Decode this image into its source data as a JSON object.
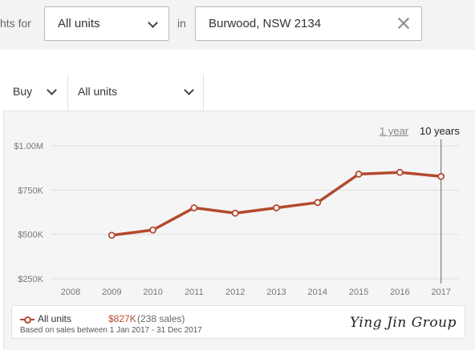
{
  "search": {
    "prefix_label": "hts for",
    "type_value": "All units",
    "in_label": "in",
    "location_value": "Burwood, NSW 2134"
  },
  "filters": {
    "mode_value": "Buy",
    "unit_value": "All units"
  },
  "range": {
    "one_year": "1 year",
    "ten_years": "10 years",
    "selected": "10 years"
  },
  "chart_data": {
    "type": "line",
    "x": [
      "2008",
      "2009",
      "2010",
      "2011",
      "2012",
      "2013",
      "2014",
      "2015",
      "2016",
      "2017"
    ],
    "y_tick_labels": [
      "$1.00M",
      "$750K",
      "$500K",
      "$250K"
    ],
    "y_ticks": [
      1000000,
      750000,
      500000,
      250000
    ],
    "ylim": [
      250000,
      1000000
    ],
    "series": [
      {
        "name": "All units",
        "values": [
          null,
          495000,
          525000,
          650000,
          620000,
          650000,
          680000,
          840000,
          850000,
          827000
        ]
      }
    ],
    "grid": true,
    "highlight_x": "2017",
    "color": "#b24a2e"
  },
  "legend": {
    "series_name": "All units",
    "value": "$827K",
    "count": "(238 sales)",
    "note": "Based on sales between 1 Jan 2017 - 31 Dec 2017"
  },
  "watermark": "Ying Jin Group"
}
